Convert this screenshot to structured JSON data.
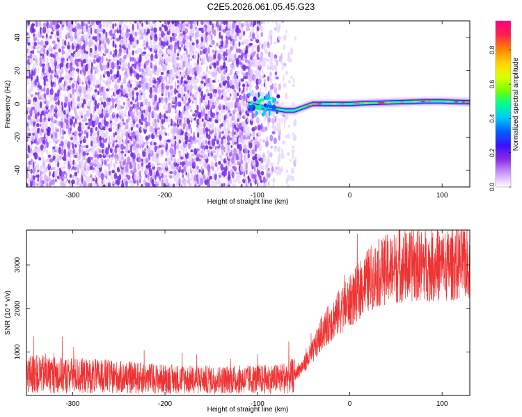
{
  "title": "C2E5.2026.061.05.45.G23",
  "chart_data": [
    {
      "type": "heatmap",
      "name": "spectrogram",
      "xlabel": "Height of straight line (km)",
      "ylabel": "Frequency (Hz)",
      "xlim": [
        -350,
        130
      ],
      "ylim": [
        -50,
        50
      ],
      "x_ticks": [
        -300,
        -200,
        -100,
        0,
        100
      ],
      "y_ticks": [
        -40,
        -20,
        0,
        20,
        40
      ],
      "x_tick_labels": [
        "-300",
        "-200",
        "-100",
        "0",
        "100"
      ],
      "y_tick_labels": [
        "-40",
        "-20",
        "0",
        "20",
        "40"
      ],
      "noise_region_x": [
        -350,
        -58
      ],
      "signal_onset_x": -110,
      "signal_track": {
        "x": [
          -110,
          -95,
          -80,
          -70,
          -60,
          -50,
          -40,
          -30,
          -20,
          -10,
          0,
          20,
          50,
          80,
          100,
          130
        ],
        "y": [
          0,
          -2,
          -3,
          -4,
          -4,
          -2,
          0,
          0,
          0,
          0,
          0,
          0.5,
          1,
          1.5,
          1.5,
          1
        ]
      },
      "colorbar": {
        "label": "Normalized spectral amplitude",
        "range": [
          0.0,
          0.97
        ],
        "ticks": [
          0.0,
          0.2,
          0.4,
          0.6,
          0.8
        ],
        "tick_labels": [
          "0.0",
          "0.2",
          "0.4",
          "0.6",
          "0.8"
        ],
        "colormap": [
          "#ffffff",
          "#cc99ff",
          "#8a2be2",
          "#3a10ff",
          "#0060ff",
          "#00c8ff",
          "#00ff90",
          "#7cff00",
          "#e0ff00",
          "#ffd000",
          "#ff8000",
          "#ff2050",
          "#ff0080"
        ]
      }
    },
    {
      "type": "line",
      "name": "snr",
      "xlabel": "Height of straight line (km)",
      "ylabel": "SNR (10 * v/v)",
      "xlim": [
        -350,
        130
      ],
      "ylim": [
        0,
        3800
      ],
      "x_ticks": [
        -300,
        -200,
        -100,
        0,
        100
      ],
      "y_ticks": [
        1000,
        2000,
        3000
      ],
      "x_tick_labels": [
        "-300",
        "-200",
        "-100",
        "0",
        "100"
      ],
      "y_tick_labels": [
        "1000",
        "2000",
        "3000"
      ],
      "color": "#ee3333",
      "series": [
        {
          "x": [
            -350,
            -300,
            -250,
            -200,
            -150,
            -100,
            -80,
            -60,
            -50,
            -40,
            -30,
            -20,
            -10,
            0,
            10,
            20,
            30,
            40,
            60,
            80,
            100,
            130
          ],
          "y": [
            500,
            460,
            420,
            380,
            360,
            370,
            380,
            450,
            700,
            1000,
            1450,
            1700,
            1950,
            2150,
            2400,
            2650,
            2800,
            2900,
            2950,
            3000,
            2980,
            3050
          ]
        }
      ]
    }
  ]
}
